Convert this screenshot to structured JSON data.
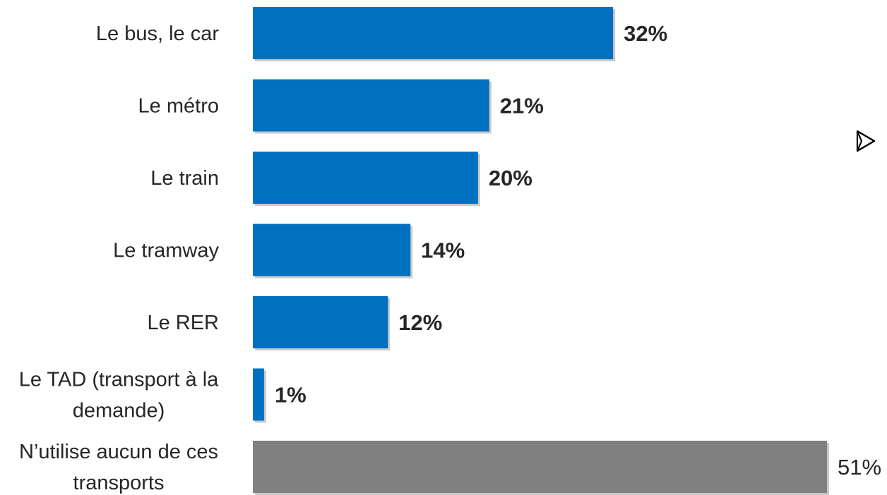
{
  "chart_data": {
    "type": "bar",
    "orientation": "horizontal",
    "categories": [
      "Le bus, le car",
      "Le métro",
      "Le train",
      "Le tramway",
      "Le RER",
      "Le TAD (transport à la demande)",
      "N’utilise aucun de ces transports"
    ],
    "category_lines": [
      [
        "Le bus, le car"
      ],
      [
        "Le métro"
      ],
      [
        "Le train"
      ],
      [
        "Le tramway"
      ],
      [
        "Le RER"
      ],
      [
        "Le TAD (transport à la",
        "demande)"
      ],
      [
        "N’utilise aucun de ces",
        "transports"
      ]
    ],
    "values": [
      32,
      21,
      20,
      14,
      12,
      1,
      51
    ],
    "value_labels": [
      "32%",
      "21%",
      "20%",
      "14%",
      "12%",
      "1%",
      "51%"
    ],
    "value_label_bold": [
      true,
      true,
      true,
      true,
      true,
      true,
      false
    ],
    "bar_colors": [
      "#0070c0",
      "#0070c0",
      "#0070c0",
      "#0070c0",
      "#0070c0",
      "#0070c0",
      "#808080"
    ],
    "bar_shadow": true,
    "xlim": [
      0,
      51
    ],
    "grid": false,
    "legend": "none"
  },
  "decorations": {
    "arrow_icon": "arrowhead-right-icon"
  }
}
